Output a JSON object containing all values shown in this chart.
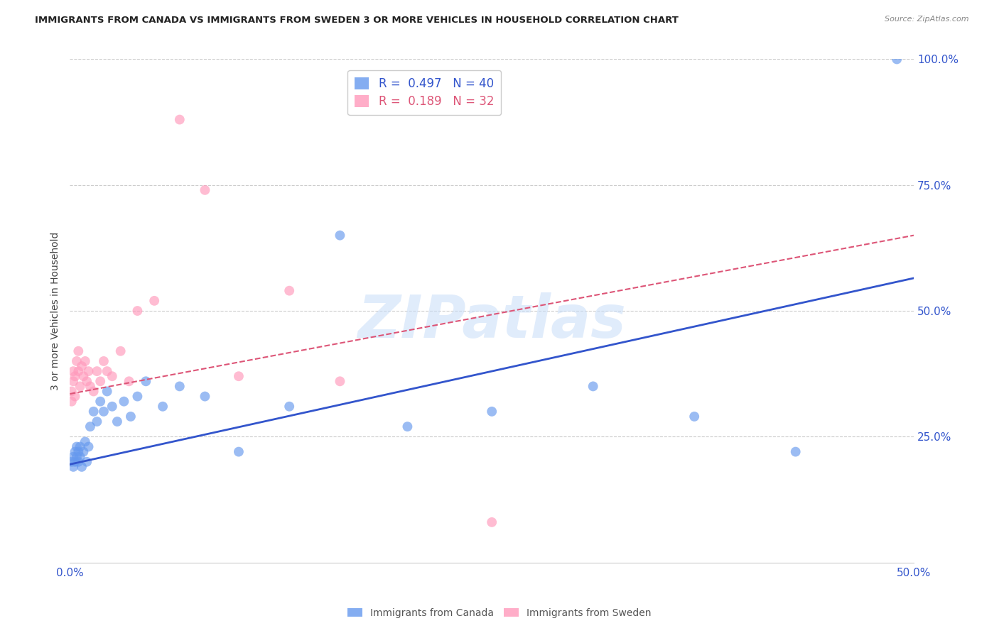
{
  "title": "IMMIGRANTS FROM CANADA VS IMMIGRANTS FROM SWEDEN 3 OR MORE VEHICLES IN HOUSEHOLD CORRELATION CHART",
  "source": "Source: ZipAtlas.com",
  "ylabel": "3 or more Vehicles in Household",
  "xlim": [
    0.0,
    0.5
  ],
  "ylim": [
    0.0,
    1.0
  ],
  "canada_color": "#6699ee",
  "sweden_color": "#ff99bb",
  "canada_line_color": "#3355cc",
  "sweden_line_color": "#dd5577",
  "canada_R": 0.497,
  "canada_N": 40,
  "sweden_R": 0.189,
  "sweden_N": 32,
  "canada_x": [
    0.001,
    0.002,
    0.002,
    0.003,
    0.003,
    0.004,
    0.004,
    0.005,
    0.005,
    0.006,
    0.006,
    0.007,
    0.008,
    0.009,
    0.01,
    0.011,
    0.012,
    0.014,
    0.016,
    0.018,
    0.02,
    0.022,
    0.025,
    0.028,
    0.032,
    0.036,
    0.04,
    0.045,
    0.055,
    0.065,
    0.08,
    0.1,
    0.13,
    0.16,
    0.2,
    0.25,
    0.31,
    0.37,
    0.43,
    0.49
  ],
  "canada_y": [
    0.2,
    0.19,
    0.21,
    0.22,
    0.2,
    0.21,
    0.23,
    0.2,
    0.22,
    0.21,
    0.23,
    0.19,
    0.22,
    0.24,
    0.2,
    0.23,
    0.27,
    0.3,
    0.28,
    0.32,
    0.3,
    0.34,
    0.31,
    0.28,
    0.32,
    0.29,
    0.33,
    0.36,
    0.31,
    0.35,
    0.33,
    0.22,
    0.31,
    0.65,
    0.27,
    0.3,
    0.35,
    0.29,
    0.22,
    1.0
  ],
  "sweden_x": [
    0.001,
    0.001,
    0.002,
    0.002,
    0.003,
    0.003,
    0.004,
    0.005,
    0.005,
    0.006,
    0.007,
    0.008,
    0.009,
    0.01,
    0.011,
    0.012,
    0.014,
    0.016,
    0.018,
    0.02,
    0.022,
    0.025,
    0.03,
    0.035,
    0.04,
    0.05,
    0.065,
    0.08,
    0.1,
    0.13,
    0.16,
    0.25
  ],
  "sweden_y": [
    0.32,
    0.34,
    0.36,
    0.38,
    0.33,
    0.37,
    0.4,
    0.38,
    0.42,
    0.35,
    0.39,
    0.37,
    0.4,
    0.36,
    0.38,
    0.35,
    0.34,
    0.38,
    0.36,
    0.4,
    0.38,
    0.37,
    0.42,
    0.36,
    0.5,
    0.52,
    0.88,
    0.74,
    0.37,
    0.54,
    0.36,
    0.08
  ],
  "watermark": "ZIPatlas",
  "background_color": "#ffffff",
  "grid_color": "#cccccc"
}
